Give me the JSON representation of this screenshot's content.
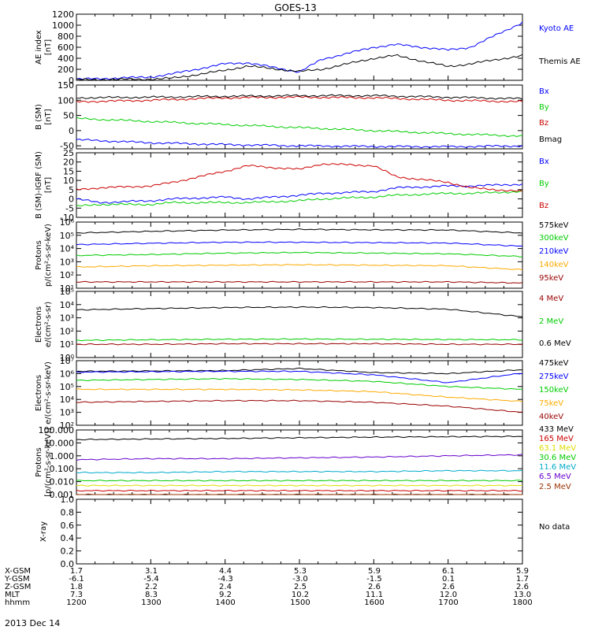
{
  "title": "GOES-13",
  "date_label": "2013 Dec 14",
  "footer": {
    "row_labels": [
      "X-GSM",
      "Y-GSM",
      "Z-GSM",
      "MLT",
      "hhmm"
    ],
    "rows": [
      [
        "1.7",
        "3.1",
        "4.4",
        "5.3",
        "5.9",
        "6.1",
        "5.9"
      ],
      [
        "-6.1",
        "-5.4",
        "-4.3",
        "-3.0",
        "-1.5",
        "0.1",
        "1.7"
      ],
      [
        "1.8",
        "2.2",
        "2.4",
        "2.5",
        "2.6",
        "2.6",
        "2.6"
      ],
      [
        "7.3",
        "8.3",
        "9.2",
        "10.2",
        "11.1",
        "12.0",
        "13.0"
      ],
      [
        "1200",
        "1300",
        "1400",
        "1500",
        "1600",
        "1700",
        "1800"
      ]
    ]
  },
  "colors": {
    "black": "#000000",
    "blue": "#0000ff",
    "red": "#cc0000",
    "green": "#00cc00",
    "orange": "#ffaa00",
    "darkred": "#990000",
    "purple": "#6600cc",
    "cyan": "#00aacc",
    "yellow": "#dddd00",
    "brown": "#993300"
  },
  "chart_data": [
    {
      "type": "line",
      "ylabel": [
        "AE index",
        "[nT]"
      ],
      "ylim": [
        0,
        1200
      ],
      "yticks": [
        0,
        200,
        400,
        600,
        800,
        1000,
        1200
      ],
      "yticklabels": [
        "0",
        "200",
        "400",
        "600",
        "800",
        "1000",
        "1200"
      ],
      "x": [
        1200,
        1230,
        1300,
        1330,
        1400,
        1430,
        1500,
        1530,
        1600,
        1630,
        1700,
        1730,
        1800
      ],
      "series": [
        {
          "name": "Kyoto AE",
          "color": "#0000ff",
          "values": [
            20,
            30,
            60,
            120,
            300,
            320,
            150,
            380,
            600,
            650,
            550,
            600,
            1050
          ]
        },
        {
          "name": "Themis AE",
          "color": "#000000",
          "values": [
            10,
            15,
            20,
            40,
            180,
            260,
            160,
            200,
            400,
            450,
            250,
            300,
            450
          ]
        }
      ]
    },
    {
      "type": "line",
      "ylabel": [
        "B (SM)",
        "[nT]"
      ],
      "ylim": [
        -60,
        150
      ],
      "yticks": [
        -50,
        0,
        50,
        100,
        150
      ],
      "yticklabels": [
        "-50",
        "0",
        "50",
        "100",
        "150"
      ],
      "x": [
        1200,
        1300,
        1400,
        1500,
        1600,
        1700,
        1800
      ],
      "series": [
        {
          "name": "Bx",
          "color": "#0000ff",
          "values": [
            -30,
            -40,
            -46,
            -50,
            -52,
            -53,
            -50
          ]
        },
        {
          "name": "By",
          "color": "#00cc00",
          "values": [
            40,
            30,
            20,
            10,
            0,
            -10,
            -18
          ]
        },
        {
          "name": "Bz",
          "color": "#cc0000",
          "values": [
            95,
            100,
            108,
            110,
            108,
            100,
            95
          ]
        },
        {
          "name": "Bmag",
          "color": "#000000",
          "values": [
            108,
            110,
            113,
            115,
            115,
            110,
            105
          ]
        }
      ]
    },
    {
      "type": "line",
      "ylabel": [
        "B (SM)-IGRF (SM)",
        "[nT]"
      ],
      "ylim": [
        -10,
        25
      ],
      "yticks": [
        -10,
        -5,
        0,
        5,
        10,
        15,
        20,
        25
      ],
      "yticklabels": [
        "-10",
        "-5",
        "0",
        "5",
        "10",
        "15",
        "20",
        "25"
      ],
      "x": [
        1200,
        1230,
        1300,
        1330,
        1400,
        1430,
        1500,
        1530,
        1600,
        1630,
        1700,
        1730,
        1800
      ],
      "series": [
        {
          "name": "Bx",
          "color": "#0000ff",
          "values": [
            0,
            -2,
            -1,
            0,
            1,
            0,
            2,
            3,
            4,
            6,
            7,
            7,
            8
          ]
        },
        {
          "name": "By",
          "color": "#00cc00",
          "values": [
            -4,
            -3,
            -3,
            -2,
            -2,
            -2,
            -1,
            0,
            1,
            2,
            3,
            3,
            4
          ]
        },
        {
          "name": "Bz",
          "color": "#cc0000",
          "values": [
            5,
            6,
            7,
            9,
            15,
            18,
            16,
            19,
            18,
            12,
            9,
            6,
            4
          ]
        }
      ]
    },
    {
      "type": "line",
      "log": true,
      "ylabel": [
        "Protons",
        "p/(cm²-s-sr-keV)"
      ],
      "ylim": [
        10,
        1000000
      ],
      "yticks": [
        10,
        100,
        1000,
        10000,
        100000,
        1000000
      ],
      "yticklabels": [
        "10¹",
        "10²",
        "10³",
        "10⁴",
        "10⁵",
        "10⁶"
      ],
      "x": [
        1200,
        1300,
        1400,
        1500,
        1600,
        1700,
        1800
      ],
      "series": [
        {
          "name": "575keV",
          "color": "#000000",
          "values": [
            150000,
            200000,
            250000,
            280000,
            260000,
            250000,
            150000
          ]
        },
        {
          "name": "300keV",
          "color": "#00cc00",
          "values": [
            3000,
            3500,
            4500,
            5000,
            4500,
            4000,
            2500
          ]
        },
        {
          "name": "210keV",
          "color": "#0000ff",
          "values": [
            20000,
            25000,
            30000,
            30000,
            28000,
            26000,
            15000
          ]
        },
        {
          "name": "140keV",
          "color": "#ffaa00",
          "values": [
            400,
            500,
            550,
            600,
            550,
            500,
            250
          ]
        },
        {
          "name": "95keV",
          "color": "#990000",
          "values": [
            30,
            30,
            30,
            30,
            30,
            30,
            25
          ]
        }
      ]
    },
    {
      "type": "line",
      "log": true,
      "ylabel": [
        "Electrons",
        "e/(cm²-s-sr)"
      ],
      "ylim": [
        1,
        100000
      ],
      "yticks": [
        1,
        10,
        100,
        1000,
        10000,
        100000
      ],
      "yticklabels": [
        "10⁰",
        "10¹",
        "10²",
        "10³",
        "10⁴",
        "10⁵"
      ],
      "x": [
        1200,
        1300,
        1400,
        1500,
        1600,
        1700,
        1800
      ],
      "series": [
        {
          "name": "4 MeV",
          "color": "#990000",
          "values": [
            10,
            10,
            11,
            11,
            11,
            10,
            10
          ]
        },
        {
          "name": "2 MeV",
          "color": "#00cc00",
          "values": [
            20,
            22,
            24,
            25,
            24,
            23,
            22
          ]
        },
        {
          "name": "0.6 MeV",
          "color": "#000000",
          "values": [
            4000,
            5000,
            6000,
            6500,
            6000,
            4500,
            1200
          ]
        }
      ]
    },
    {
      "type": "line",
      "log": true,
      "ylabel": [
        "Electrons",
        "e/(cm²-s-sr-keV)"
      ],
      "ylim": [
        100,
        10000000
      ],
      "yticks": [
        100,
        1000,
        10000,
        100000,
        1000000,
        10000000
      ],
      "yticklabels": [
        "10²",
        "10³",
        "10⁴",
        "10⁵",
        "10⁶",
        "10⁷"
      ],
      "x": [
        1200,
        1300,
        1400,
        1500,
        1600,
        1700,
        1800
      ],
      "series": [
        {
          "name": "475keV",
          "color": "#000000",
          "values": [
            1500000,
            1600000,
            1700000,
            2500000,
            1200000,
            1000000,
            2000000
          ]
        },
        {
          "name": "275keV",
          "color": "#0000ff",
          "values": [
            1300000,
            1400000,
            1500000,
            1500000,
            800000,
            200000,
            1100000
          ]
        },
        {
          "name": "150keV",
          "color": "#00cc00",
          "values": [
            300000,
            350000,
            400000,
            350000,
            250000,
            100000,
            60000
          ]
        },
        {
          "name": "75keV",
          "color": "#ffaa00",
          "values": [
            60000,
            60000,
            60000,
            55000,
            40000,
            15000,
            7000
          ]
        },
        {
          "name": "40keV",
          "color": "#990000",
          "values": [
            6000,
            7000,
            8000,
            8000,
            6000,
            3000,
            1000
          ]
        }
      ]
    },
    {
      "type": "line",
      "log": true,
      "ylabel": [
        "Protons",
        "[p/(cm²-s-sr-keV)]"
      ],
      "ylim": [
        0.001,
        100
      ],
      "yticks": [
        0.001,
        0.01,
        0.1,
        1,
        10,
        100
      ],
      "yticklabels": [
        "0.001",
        "0.010",
        "0.100",
        "1.000",
        "10.000",
        "100.000"
      ],
      "x": [
        1200,
        1300,
        1400,
        1500,
        1600,
        1700,
        1800
      ],
      "series": [
        {
          "name": "433 MeV",
          "color": "#000000",
          "values": [
            18,
            20,
            22,
            25,
            28,
            30,
            32
          ]
        },
        {
          "name": "165 MeV",
          "color": "#cc0000",
          "values": [
            0.002,
            0.002,
            0.002,
            0.002,
            0.002,
            0.002,
            0.002
          ]
        },
        {
          "name": "63.1 MeV",
          "color": "#dddd00",
          "values": [
            0.005,
            0.005,
            0.005,
            0.005,
            0.005,
            0.005,
            0.005
          ]
        },
        {
          "name": "30.6 MeV",
          "color": "#00cc00",
          "values": [
            0.012,
            0.012,
            0.012,
            0.012,
            0.012,
            0.012,
            0.012
          ]
        },
        {
          "name": "11.6 MeV",
          "color": "#00aacc",
          "values": [
            0.05,
            0.05,
            0.06,
            0.06,
            0.06,
            0.07,
            0.07
          ]
        },
        {
          "name": "6.5 MeV",
          "color": "#6600cc",
          "values": [
            0.5,
            0.6,
            0.6,
            0.7,
            0.8,
            1.0,
            1.2
          ]
        },
        {
          "name": "2.5 MeV",
          "color": "#993300",
          "values": [
            0.001,
            0.001,
            0.001,
            0.001,
            0.001,
            0.001,
            0.001
          ]
        }
      ]
    },
    {
      "type": "line",
      "ylabel": [
        "X-ray"
      ],
      "ylim": [
        0,
        1
      ],
      "yticks": [
        0,
        0.2,
        0.4,
        0.6,
        0.8,
        1.0
      ],
      "yticklabels": [
        "0.0",
        "0.2",
        "0.4",
        "0.6",
        "0.8",
        "1.0"
      ],
      "x": [],
      "series": [],
      "note": "No data"
    }
  ]
}
